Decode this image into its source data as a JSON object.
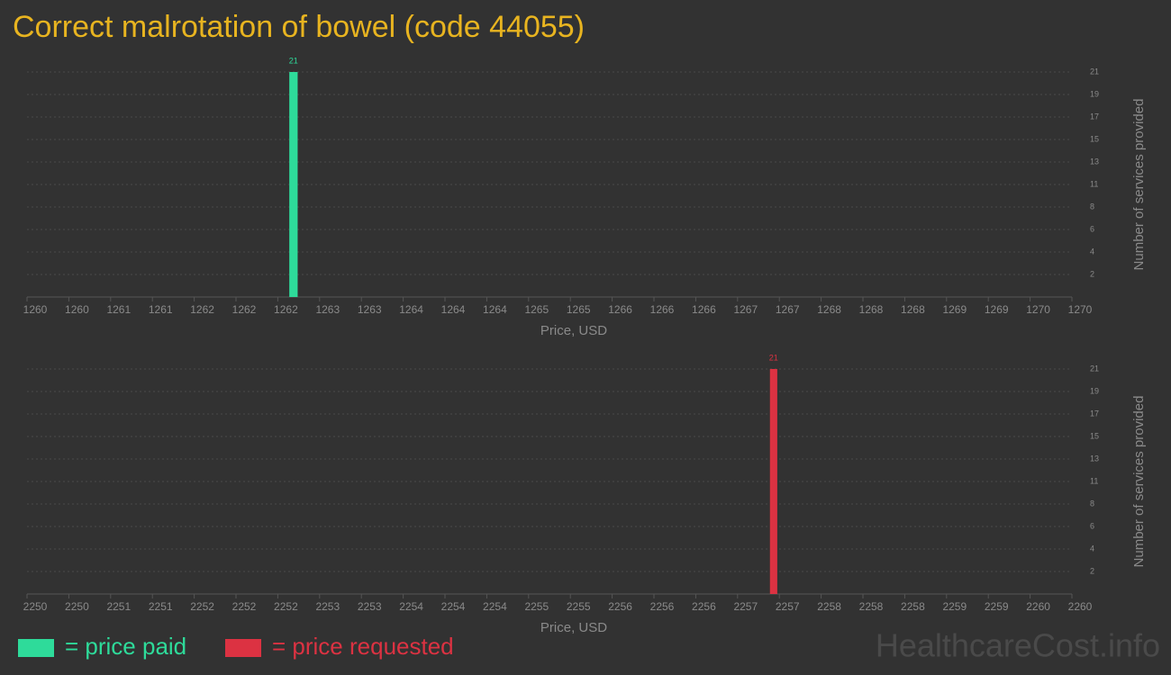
{
  "title": "Correct malrotation of bowel (code 44055)",
  "watermark": "HealthcareCost.info",
  "chart_data": [
    {
      "type": "histogram",
      "bins": [
        1262.51,
        1262.59
      ],
      "series": [
        {
          "name": "= price paid",
          "color": "#2edb9a",
          "values": [
            21
          ]
        }
      ],
      "xlabel": "Price, USD",
      "ylabel": "Number of services provided",
      "xlim": [
        1260,
        1270
      ],
      "xticks": [
        1260,
        {
          "value": 1260.4,
          "label": "1260"
        },
        {
          "value": 1260.8,
          "label": "1261"
        },
        {
          "value": 1261.2,
          "label": "1261"
        },
        {
          "value": 1261.6,
          "label": "1262"
        },
        1262,
        {
          "value": 1262.4,
          "label": "1262"
        },
        {
          "value": 1262.8,
          "label": "1263"
        },
        {
          "value": 1263.2,
          "label": "1263"
        },
        {
          "value": 1263.6,
          "label": "1264"
        },
        1264,
        {
          "value": 1264.4,
          "label": "1264"
        },
        {
          "value": 1264.8,
          "label": "1265"
        },
        {
          "value": 1265.2,
          "label": "1265"
        },
        {
          "value": 1265.6,
          "label": "1266"
        },
        1266,
        {
          "value": 1266.4,
          "label": "1266"
        },
        {
          "value": 1266.8,
          "label": "1267"
        },
        {
          "value": 1267.2,
          "label": "1267"
        },
        {
          "value": 1267.6,
          "label": "1268"
        },
        1268,
        {
          "value": 1268.4,
          "label": "1268"
        },
        {
          "value": 1268.8,
          "label": "1269"
        },
        {
          "value": 1269.2,
          "label": "1269"
        },
        {
          "value": 1269.6,
          "label": "1270"
        },
        1270
      ],
      "ylim": [
        0,
        21
      ],
      "yticks": [
        {
          "value": 2.1,
          "label": "2"
        },
        {
          "value": 4.2,
          "label": "4"
        },
        {
          "value": 6.3,
          "label": "6"
        },
        {
          "value": 8.4,
          "label": "8"
        },
        {
          "value": 10.5,
          "label": "11"
        },
        {
          "value": 12.6,
          "label": "13"
        },
        {
          "value": 14.7,
          "label": "15"
        },
        {
          "value": 16.8,
          "label": "17"
        },
        {
          "value": 18.9,
          "label": "19"
        },
        21
      ],
      "grid": true
    },
    {
      "type": "histogram",
      "bins": [
        2257.11,
        2257.18
      ],
      "series": [
        {
          "name": "= price requested",
          "color": "#dc3242",
          "values": [
            21
          ]
        }
      ],
      "xlabel": "Price, USD",
      "ylabel": "Number of services provided",
      "xlim": [
        2250,
        2260
      ],
      "xticks": [
        2250,
        {
          "value": 2250.4,
          "label": "2250"
        },
        {
          "value": 2250.8,
          "label": "2251"
        },
        {
          "value": 2251.2,
          "label": "2251"
        },
        {
          "value": 2251.6,
          "label": "2252"
        },
        2252,
        {
          "value": 2252.4,
          "label": "2252"
        },
        {
          "value": 2252.8,
          "label": "2253"
        },
        {
          "value": 2253.2,
          "label": "2253"
        },
        {
          "value": 2253.6,
          "label": "2254"
        },
        2254,
        {
          "value": 2254.4,
          "label": "2254"
        },
        {
          "value": 2254.8,
          "label": "2255"
        },
        {
          "value": 2255.2,
          "label": "2255"
        },
        {
          "value": 2255.6,
          "label": "2256"
        },
        2256,
        {
          "value": 2256.4,
          "label": "2256"
        },
        {
          "value": 2256.8,
          "label": "2257"
        },
        {
          "value": 2257.2,
          "label": "2257"
        },
        {
          "value": 2257.6,
          "label": "2258"
        },
        2258,
        {
          "value": 2258.4,
          "label": "2258"
        },
        {
          "value": 2258.8,
          "label": "2259"
        },
        {
          "value": 2259.2,
          "label": "2259"
        },
        {
          "value": 2259.6,
          "label": "2260"
        },
        2260
      ],
      "ylim": [
        0,
        21
      ],
      "yticks": [
        {
          "value": 2.1,
          "label": "2"
        },
        {
          "value": 4.2,
          "label": "4"
        },
        {
          "value": 6.3,
          "label": "6"
        },
        {
          "value": 8.4,
          "label": "8"
        },
        {
          "value": 10.5,
          "label": "11"
        },
        {
          "value": 12.6,
          "label": "13"
        },
        {
          "value": 14.7,
          "label": "15"
        },
        {
          "value": 16.8,
          "label": "17"
        },
        {
          "value": 18.9,
          "label": "19"
        },
        21
      ],
      "grid": true
    }
  ]
}
